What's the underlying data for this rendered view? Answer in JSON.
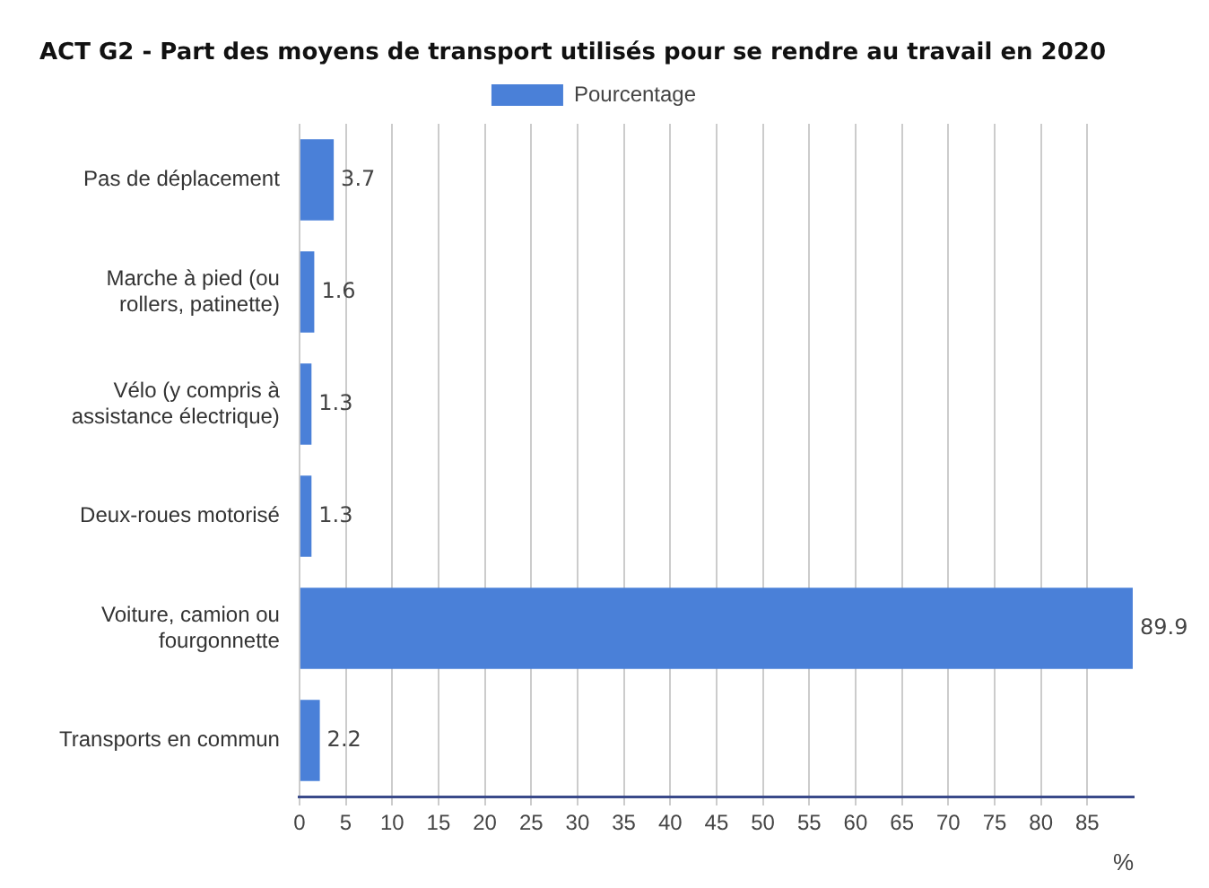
{
  "chart_data": {
    "type": "bar",
    "orientation": "horizontal",
    "title": "ACT G2 - Part des moyens de transport utilisés pour se rendre au travail en 2020",
    "xlabel": "%",
    "categories": [
      "Pas de déplacement",
      "Marche à pied (ou rollers, patinette)",
      "Vélo (y compris à assistance électrique)",
      "Deux-roues motorisé",
      "Voiture, camion ou fourgonnette",
      "Transports en commun"
    ],
    "series": [
      {
        "name": "Pourcentage",
        "color": "#4a80d8",
        "values": [
          3.7,
          1.6,
          1.3,
          1.3,
          89.9,
          2.2
        ]
      }
    ],
    "xlim": [
      0,
      90
    ],
    "xticks": [
      0,
      5,
      10,
      15,
      20,
      25,
      30,
      35,
      40,
      45,
      50,
      55,
      60,
      65,
      70,
      75,
      80,
      85
    ],
    "grid": "x",
    "legend": "top",
    "data_labels": true
  }
}
